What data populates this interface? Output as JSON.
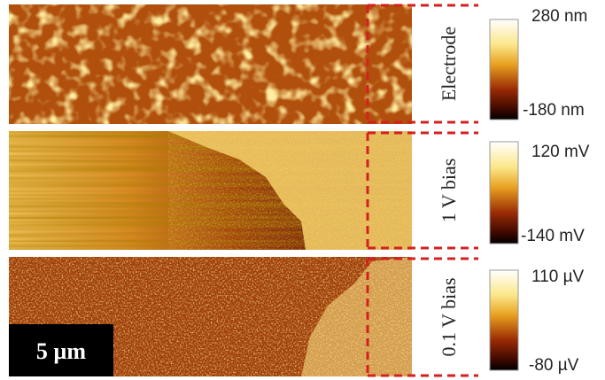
{
  "panels": [
    {
      "label": "Electrode",
      "colorbar_max": "280 nm",
      "colorbar_min": "-180 nm"
    },
    {
      "label": "1 V bias",
      "colorbar_max": "120 mV",
      "colorbar_min": "-140 mV"
    },
    {
      "label": "0.1 V bias",
      "colorbar_max": "110 µV",
      "colorbar_min": "-80 µV"
    }
  ],
  "scale_bar": "5 µm"
}
